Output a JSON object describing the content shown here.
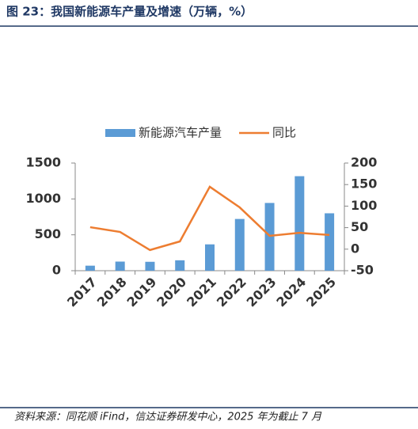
{
  "chart_data": {
    "type": "bar",
    "title": "图 23：我国新能源车产量及增速（万辆，%）",
    "source": "资料来源：同花顺 iFind，信达证券研发中心，2025 年为截止 7 月",
    "categories": [
      "2017",
      "2018",
      "2019",
      "2020",
      "2021",
      "2022",
      "2023",
      "2024",
      "2025"
    ],
    "series": [
      {
        "name": "新能源汽车产量",
        "type": "bar",
        "color": "#5b9bd5",
        "values": [
          70,
          127,
          124,
          145,
          367,
          721,
          944,
          1317,
          800
        ]
      },
      {
        "name": "同比",
        "type": "line",
        "axis": "y2",
        "color": "#ed7d31",
        "values": [
          51,
          40,
          -2,
          18,
          145,
          97,
          31,
          38,
          33
        ]
      }
    ],
    "ylim": [
      0,
      1500
    ],
    "yticks": [
      0,
      500,
      1000,
      1500
    ],
    "y2lim": [
      -50,
      200
    ],
    "y2ticks": [
      -50,
      0,
      50,
      100,
      150,
      200
    ],
    "legend": "top"
  }
}
